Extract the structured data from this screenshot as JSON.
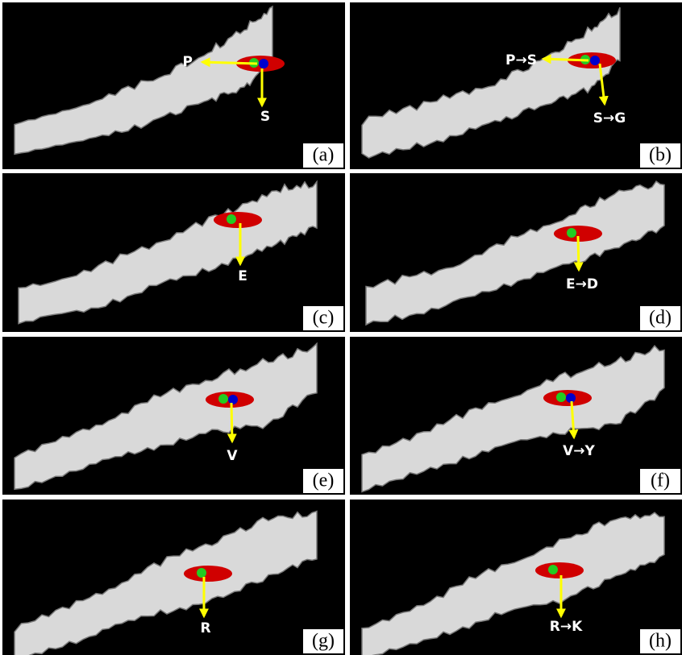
{
  "panels": [
    {
      "tag": "(a)",
      "labels": [
        "P",
        "S"
      ]
    },
    {
      "tag": "(b)",
      "labels": [
        "P→S",
        "S→G"
      ]
    },
    {
      "tag": "(c)",
      "labels": [
        "E"
      ]
    },
    {
      "tag": "(d)",
      "labels": [
        "E→D"
      ]
    },
    {
      "tag": "(e)",
      "labels": [
        "V"
      ]
    },
    {
      "tag": "(f)",
      "labels": [
        "V→Y"
      ]
    },
    {
      "tag": "(g)",
      "labels": [
        "R"
      ]
    },
    {
      "tag": "(h)",
      "labels": [
        "R→K"
      ]
    }
  ]
}
